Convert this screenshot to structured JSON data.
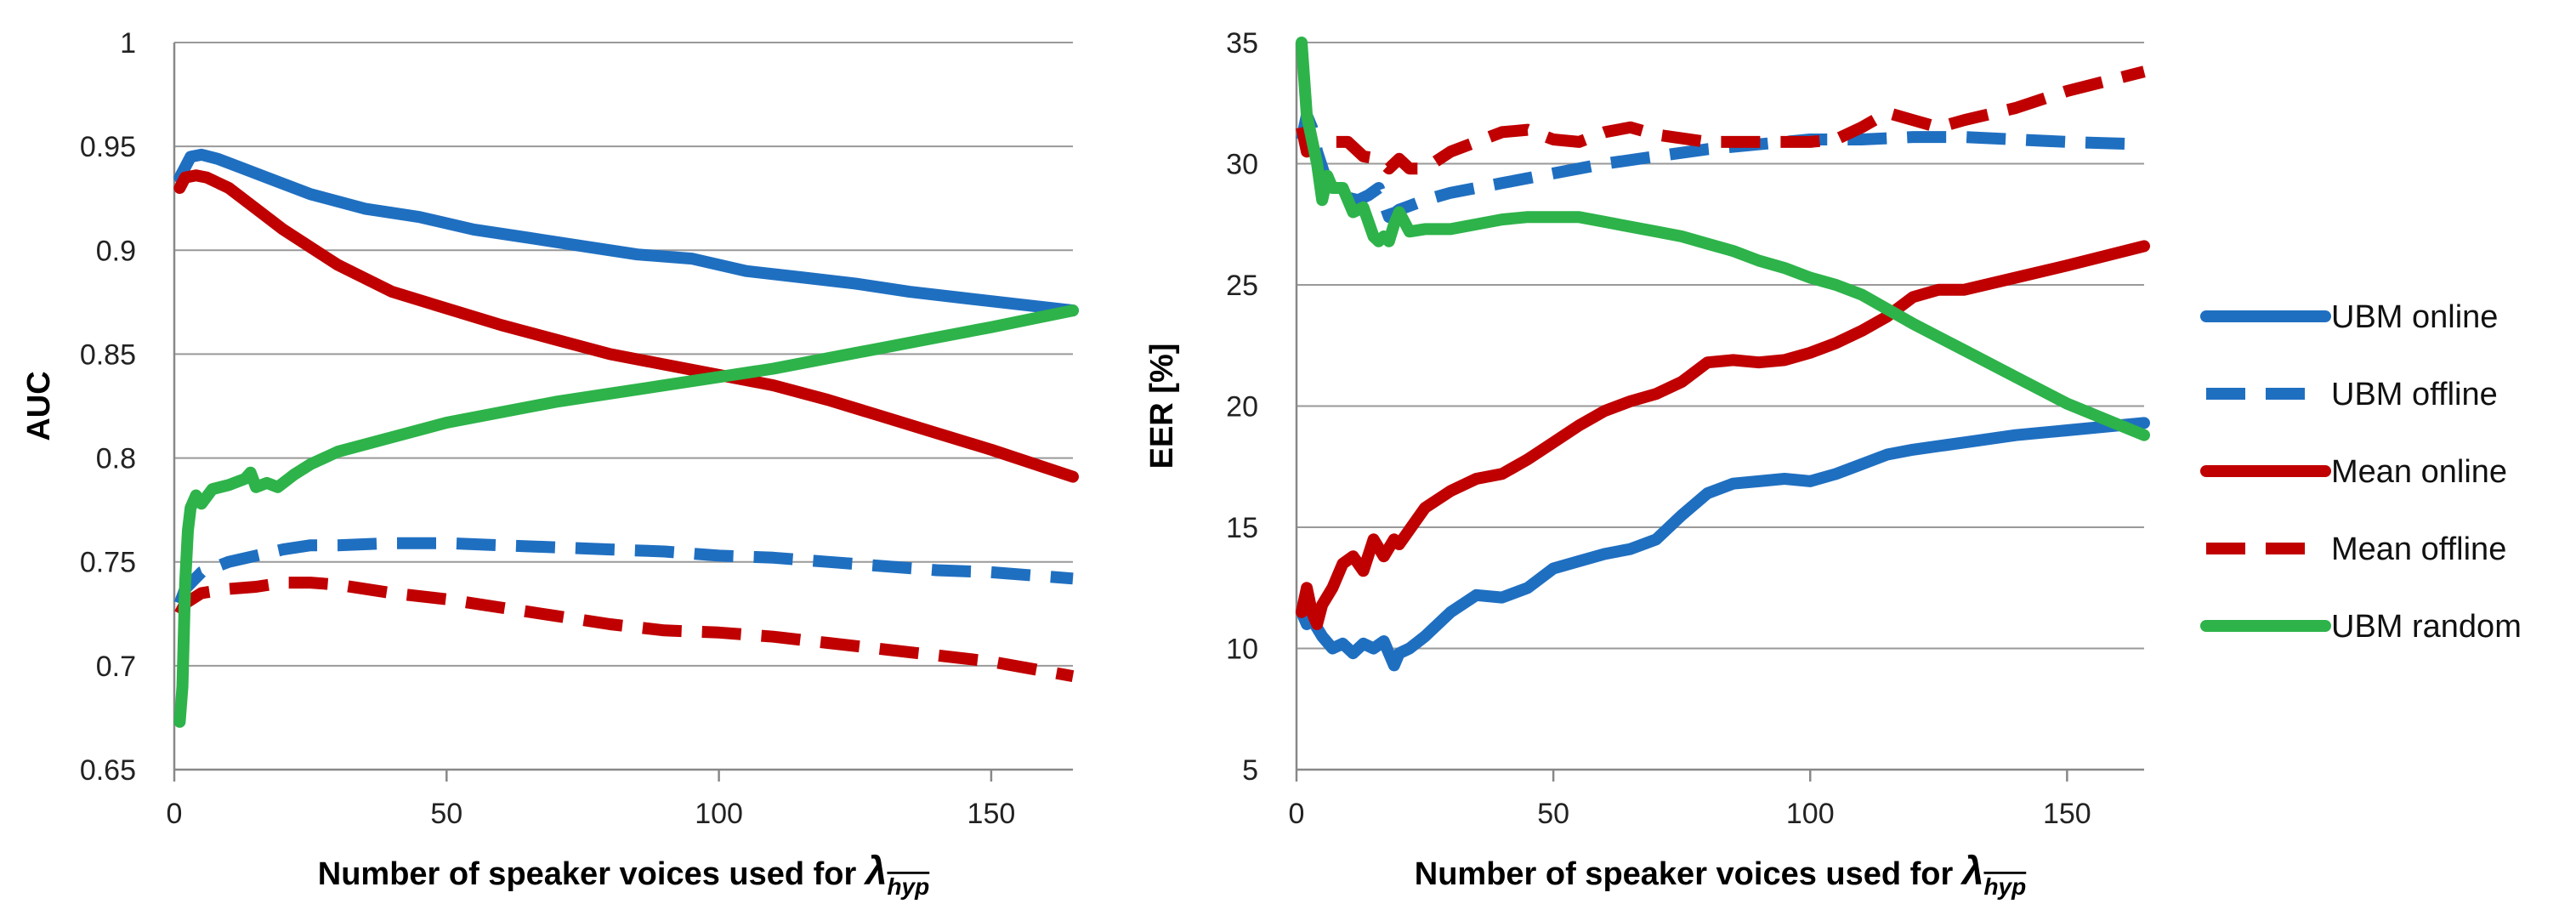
{
  "colors": {
    "blue": "#1f6fc1",
    "red": "#c00000",
    "green": "#2db34a",
    "grid": "#999999",
    "axis": "#888888"
  },
  "legend": [
    {
      "name": "UBM online",
      "color": "blue",
      "dash": false
    },
    {
      "name": "UBM offline",
      "color": "blue",
      "dash": true
    },
    {
      "name": "Mean online",
      "color": "red",
      "dash": false
    },
    {
      "name": "Mean offline",
      "color": "red",
      "dash": true
    },
    {
      "name": "UBM random",
      "color": "green",
      "dash": false
    }
  ],
  "chart_data": [
    {
      "type": "line",
      "title": "",
      "ylabel": "AUC",
      "xlabel_text": "Number of speaker voices used for ",
      "xlabel_symbol": "λ",
      "xlabel_subscript": "hyp",
      "xlim": [
        0,
        165
      ],
      "ylim": [
        0.65,
        1
      ],
      "xticks": [
        0,
        50,
        100,
        150
      ],
      "yticks": [
        0.65,
        0.7,
        0.75,
        0.8,
        0.85,
        0.9,
        0.95,
        1
      ],
      "ytick_labels": [
        "0.65",
        "0.7",
        "0.75",
        "0.8",
        "0.85",
        "0.9",
        "0.95",
        "1"
      ],
      "grid": true,
      "series": [
        {
          "name": "UBM online",
          "color": "blue",
          "dash": false,
          "x": [
            1,
            2,
            3,
            5,
            8,
            12,
            17,
            25,
            35,
            45,
            55,
            65,
            75,
            85,
            95,
            105,
            115,
            125,
            135,
            145,
            155,
            165
          ],
          "y": [
            0.935,
            0.94,
            0.945,
            0.946,
            0.944,
            0.94,
            0.935,
            0.927,
            0.92,
            0.916,
            0.91,
            0.906,
            0.902,
            0.898,
            0.896,
            0.89,
            0.887,
            0.884,
            0.88,
            0.877,
            0.874,
            0.871
          ]
        },
        {
          "name": "UBM offline",
          "color": "blue",
          "dash": true,
          "x": [
            1,
            2,
            5,
            10,
            15,
            20,
            25,
            30,
            40,
            50,
            60,
            70,
            80,
            90,
            100,
            110,
            120,
            130,
            140,
            150,
            165
          ],
          "y": [
            0.73,
            0.737,
            0.745,
            0.75,
            0.753,
            0.756,
            0.758,
            0.758,
            0.759,
            0.759,
            0.758,
            0.757,
            0.756,
            0.755,
            0.753,
            0.752,
            0.75,
            0.748,
            0.746,
            0.745,
            0.742
          ]
        },
        {
          "name": "Mean online",
          "color": "red",
          "dash": false,
          "x": [
            1,
            2,
            4,
            6,
            10,
            15,
            20,
            30,
            40,
            50,
            60,
            70,
            80,
            90,
            100,
            110,
            120,
            130,
            140,
            150,
            165
          ],
          "y": [
            0.93,
            0.935,
            0.936,
            0.935,
            0.93,
            0.92,
            0.91,
            0.893,
            0.88,
            0.872,
            0.864,
            0.857,
            0.85,
            0.845,
            0.84,
            0.835,
            0.828,
            0.82,
            0.812,
            0.804,
            0.791
          ]
        },
        {
          "name": "Mean offline",
          "color": "red",
          "dash": true,
          "x": [
            1,
            2,
            5,
            10,
            15,
            20,
            25,
            30,
            40,
            50,
            60,
            70,
            80,
            90,
            100,
            110,
            120,
            130,
            140,
            150,
            165
          ],
          "y": [
            0.725,
            0.73,
            0.735,
            0.737,
            0.738,
            0.74,
            0.74,
            0.739,
            0.735,
            0.732,
            0.728,
            0.724,
            0.72,
            0.717,
            0.716,
            0.714,
            0.711,
            0.708,
            0.705,
            0.702,
            0.695
          ]
        },
        {
          "name": "UBM random",
          "color": "green",
          "dash": false,
          "x": [
            1,
            1.5,
            2,
            2.5,
            3,
            4,
            5,
            7,
            10,
            13,
            14,
            15,
            17,
            19,
            20,
            22,
            25,
            30,
            40,
            50,
            60,
            70,
            80,
            90,
            100,
            110,
            120,
            130,
            140,
            150,
            165
          ],
          "y": [
            0.673,
            0.69,
            0.74,
            0.765,
            0.776,
            0.782,
            0.778,
            0.785,
            0.787,
            0.79,
            0.793,
            0.786,
            0.788,
            0.786,
            0.788,
            0.792,
            0.797,
            0.803,
            0.81,
            0.817,
            0.822,
            0.827,
            0.831,
            0.835,
            0.839,
            0.843,
            0.848,
            0.853,
            0.858,
            0.863,
            0.871
          ]
        }
      ]
    },
    {
      "type": "line",
      "title": "",
      "ylabel": "EER [%]",
      "xlabel_text": "Number of speaker voices used for ",
      "xlabel_symbol": "λ",
      "xlabel_subscript": "hyp",
      "xlim": [
        0,
        165
      ],
      "ylim": [
        5,
        35
      ],
      "xticks": [
        0,
        50,
        100,
        150
      ],
      "yticks": [
        5,
        10,
        15,
        20,
        25,
        30,
        35
      ],
      "ytick_labels": [
        "5",
        "10",
        "15",
        "20",
        "25",
        "30",
        "35"
      ],
      "grid": true,
      "series": [
        {
          "name": "UBM online",
          "color": "blue",
          "dash": false,
          "x": [
            1,
            2,
            3,
            5,
            7,
            9,
            11,
            13,
            15,
            17,
            19,
            20,
            22,
            25,
            30,
            35,
            40,
            45,
            50,
            55,
            60,
            65,
            70,
            75,
            80,
            85,
            90,
            95,
            100,
            105,
            110,
            115,
            120,
            130,
            140,
            150,
            165
          ],
          "y": [
            11.5,
            11,
            11.2,
            10.5,
            10,
            10.2,
            9.8,
            10.2,
            10,
            10.3,
            9.3,
            9.8,
            10,
            10.5,
            11.5,
            12.2,
            12.1,
            12.5,
            13.3,
            13.6,
            13.9,
            14.1,
            14.5,
            15.5,
            16.4,
            16.8,
            16.9,
            17,
            16.9,
            17.2,
            17.6,
            18,
            18.2,
            18.5,
            18.8,
            19,
            19.3
          ]
        },
        {
          "name": "UBM offline",
          "color": "blue",
          "dash": true,
          "x": [
            1,
            2,
            3,
            4,
            6,
            8,
            10,
            12,
            14,
            16,
            18,
            20,
            25,
            30,
            40,
            50,
            60,
            70,
            80,
            90,
            100,
            110,
            120,
            130,
            140,
            150,
            165
          ],
          "y": [
            31,
            32,
            31.5,
            30.5,
            29.2,
            28.8,
            28.6,
            28.5,
            28.7,
            29,
            27.8,
            28.1,
            28.5,
            28.8,
            29.2,
            29.6,
            30,
            30.3,
            30.6,
            30.8,
            31,
            31,
            31.1,
            31.1,
            31,
            30.9,
            30.8
          ]
        },
        {
          "name": "Mean online",
          "color": "red",
          "dash": false,
          "x": [
            1,
            2,
            3,
            4,
            5,
            7,
            9,
            11,
            13,
            15,
            17,
            19,
            20,
            25,
            30,
            35,
            40,
            45,
            50,
            55,
            60,
            65,
            70,
            75,
            80,
            85,
            90,
            95,
            100,
            105,
            110,
            115,
            120,
            125,
            130,
            140,
            150,
            165
          ],
          "y": [
            11.5,
            12.5,
            11.5,
            11,
            11.8,
            12.5,
            13.5,
            13.8,
            13.2,
            14.5,
            13.8,
            14.5,
            14.3,
            15.8,
            16.5,
            17,
            17.2,
            17.8,
            18.5,
            19.2,
            19.8,
            20.2,
            20.5,
            21,
            21.8,
            21.9,
            21.8,
            21.9,
            22.2,
            22.6,
            23.1,
            23.7,
            24.5,
            24.8,
            24.8,
            25.3,
            25.8,
            26.6
          ]
        },
        {
          "name": "Mean offline",
          "color": "red",
          "dash": true,
          "x": [
            1,
            2,
            3,
            5,
            7,
            10,
            13,
            16,
            18,
            20,
            22,
            25,
            30,
            35,
            40,
            45,
            50,
            55,
            60,
            65,
            70,
            80,
            90,
            100,
            105,
            110,
            115,
            120,
            125,
            130,
            140,
            150,
            165
          ],
          "y": [
            31.5,
            30.5,
            30.8,
            31,
            30.9,
            30.9,
            30.3,
            30.2,
            29.8,
            30.2,
            29.8,
            29.8,
            30.5,
            30.9,
            31.3,
            31.4,
            31,
            30.9,
            31.3,
            31.5,
            31.2,
            30.9,
            30.9,
            30.9,
            31,
            31.5,
            32.1,
            31.8,
            31.5,
            31.8,
            32.3,
            33,
            33.8
          ]
        },
        {
          "name": "UBM random",
          "color": "green",
          "dash": false,
          "x": [
            1,
            2,
            3,
            4,
            5,
            6,
            7,
            9,
            11,
            13,
            15,
            16,
            17,
            18,
            19,
            20,
            22,
            25,
            30,
            35,
            40,
            45,
            50,
            55,
            60,
            65,
            70,
            75,
            80,
            85,
            90,
            95,
            100,
            105,
            110,
            115,
            120,
            130,
            140,
            150,
            165
          ],
          "y": [
            35,
            32,
            31,
            30,
            28.5,
            29.5,
            29,
            29,
            28,
            28.2,
            27,
            26.8,
            27,
            26.8,
            27.5,
            28,
            27.2,
            27.3,
            27.3,
            27.5,
            27.7,
            27.8,
            27.8,
            27.8,
            27.6,
            27.4,
            27.2,
            27,
            26.7,
            26.4,
            26,
            25.7,
            25.3,
            25,
            24.6,
            24,
            23.4,
            22.3,
            21.2,
            20.1,
            18.8
          ]
        }
      ]
    }
  ]
}
